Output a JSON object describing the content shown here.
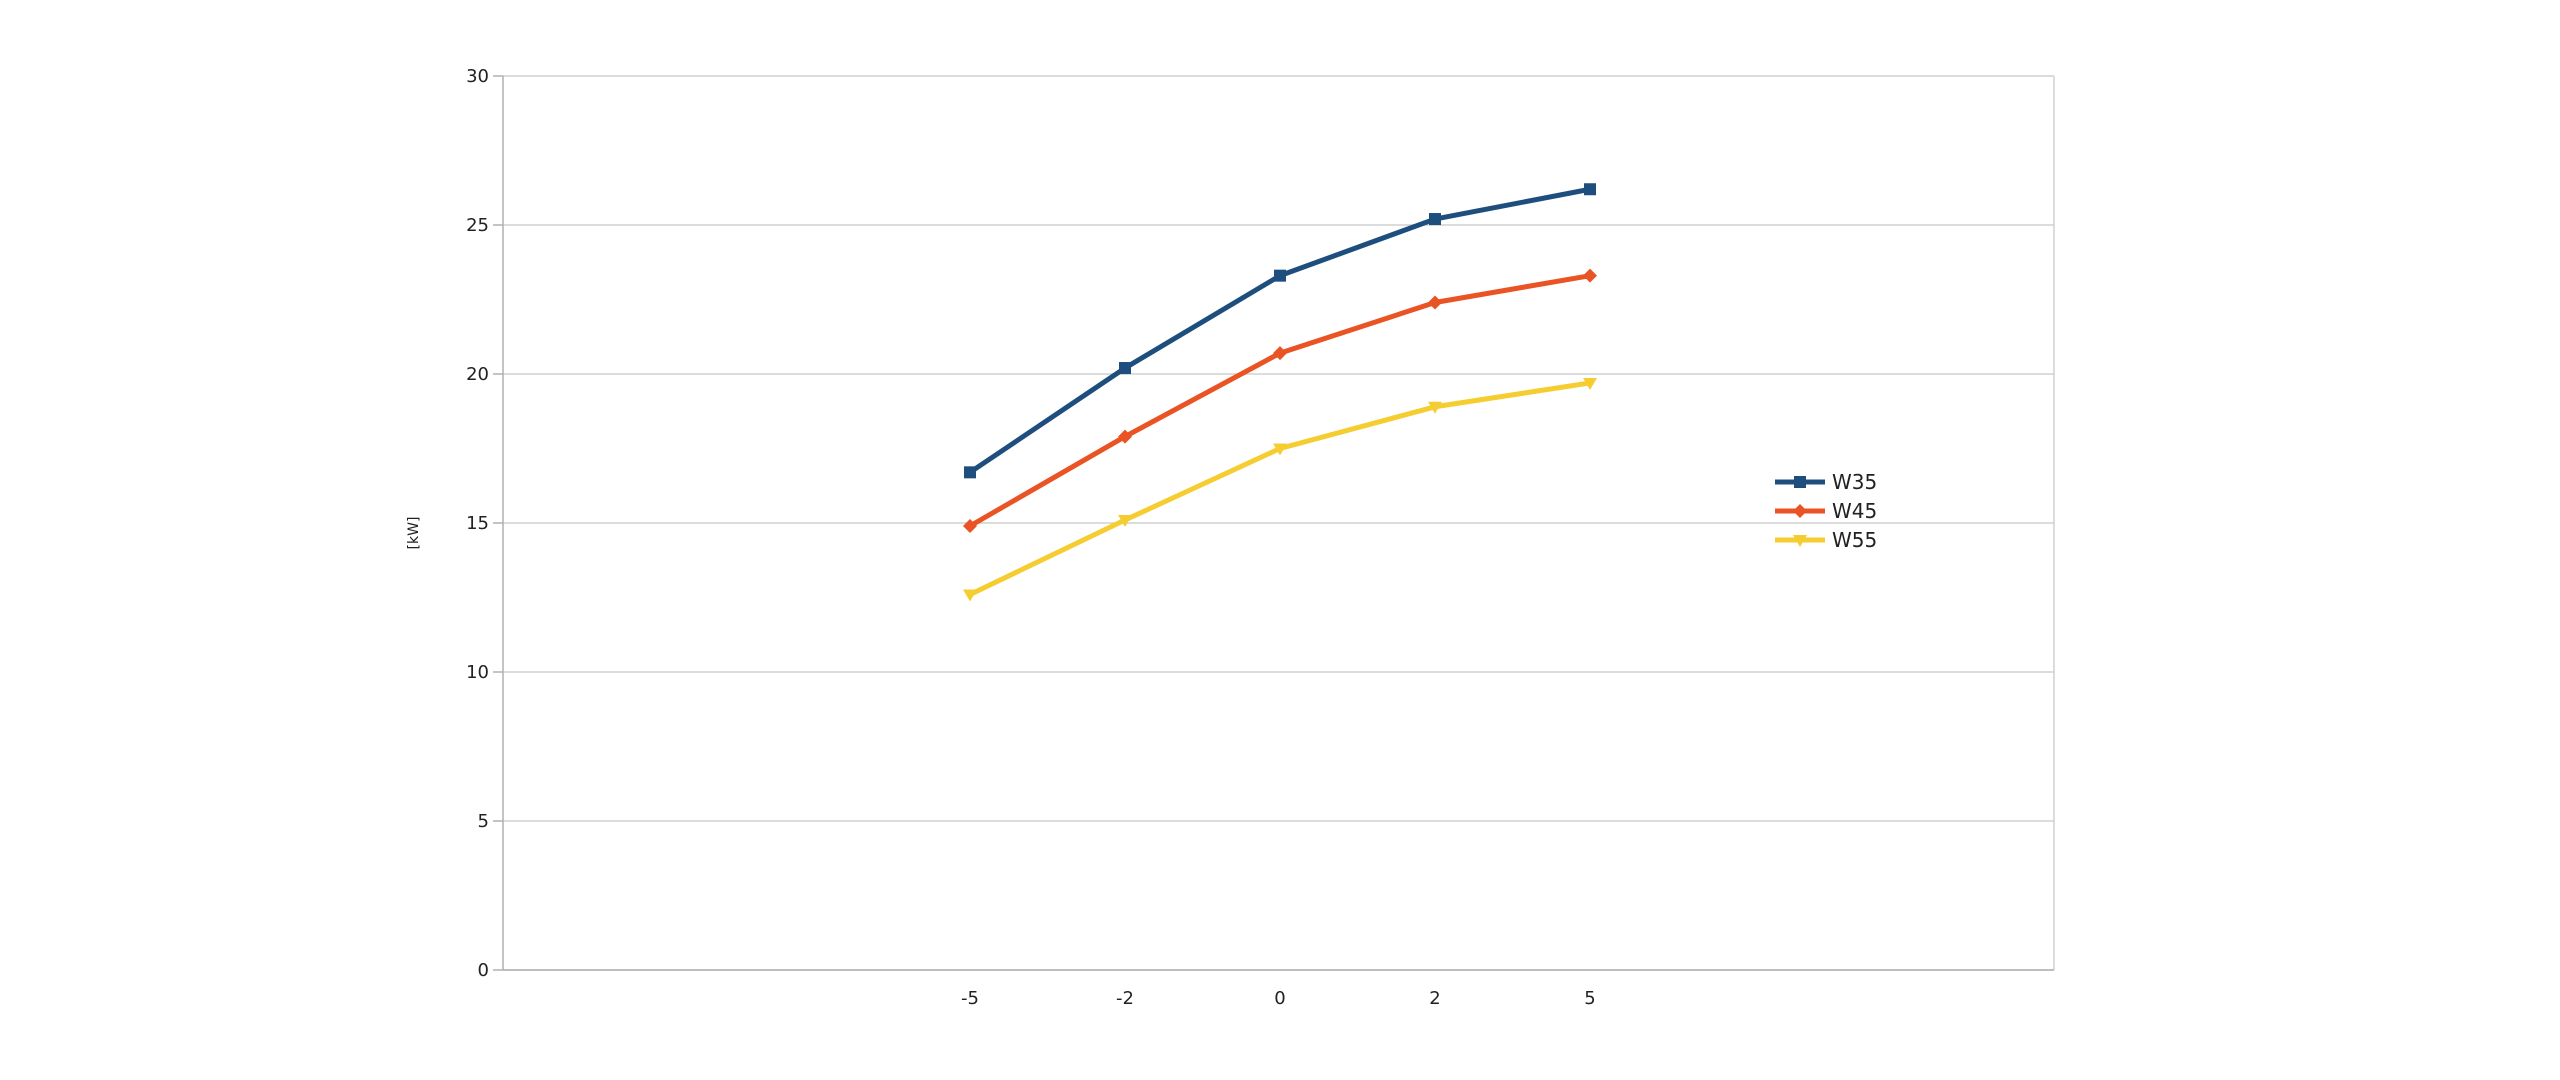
{
  "chart_data": {
    "type": "line",
    "title": "",
    "xlabel": "",
    "ylabel": "[kW]",
    "x": [
      "-5",
      "-2",
      "0",
      "2",
      "5"
    ],
    "ylim": [
      0,
      30
    ],
    "yticks": [
      0,
      5,
      10,
      15,
      20,
      25,
      30
    ],
    "grid": true,
    "legend_position": "right",
    "series": [
      {
        "name": "W35",
        "values": [
          16.7,
          20.2,
          23.3,
          25.2,
          26.2
        ],
        "color": "#1e4e7e",
        "marker": "square"
      },
      {
        "name": "W45",
        "values": [
          14.9,
          17.9,
          20.7,
          22.4,
          23.3
        ],
        "color": "#ea5323",
        "marker": "diamond"
      },
      {
        "name": "W55",
        "values": [
          12.6,
          15.1,
          17.5,
          18.9,
          19.7
        ],
        "color": "#f5cd30",
        "marker": "triangle-down"
      }
    ]
  }
}
